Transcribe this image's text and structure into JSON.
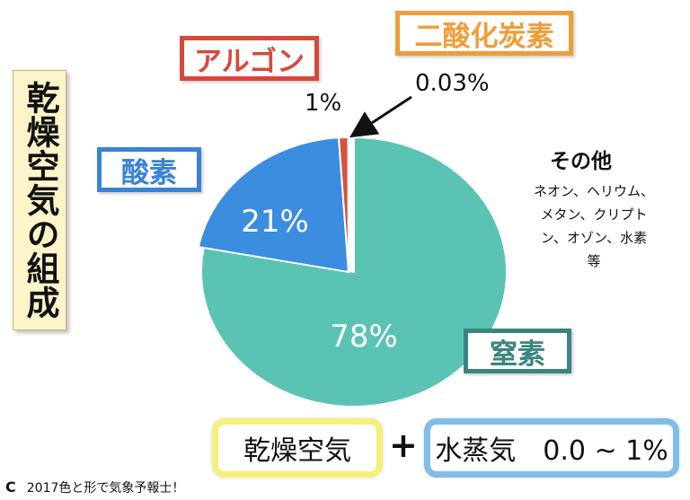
{
  "title": "乾燥空気の組成",
  "labels": {
    "argon": "アルゴン",
    "co2": "二酸化炭素",
    "oxygen": "酸素",
    "nitrogen": "窒素"
  },
  "others": {
    "title": "その他",
    "list": [
      "ネオン、ヘリウム、",
      "メタン、クリプト",
      "ン、オゾン、水素",
      "等"
    ]
  },
  "bottom": {
    "dry_air": "乾燥空気",
    "plus": "+",
    "water_vapor": "水蒸気　0.0 ~ 1%"
  },
  "copyright": {
    "symbol": "C",
    "text": "2017色と形で気象予報士！"
  },
  "colors": {
    "nitrogen": "#5bc3b4",
    "oxygen": "#3b8de0",
    "argon": "#d5533f",
    "co2": "#ef9d3a"
  },
  "chart_data": {
    "type": "pie",
    "title": "",
    "categories": [
      "窒素",
      "酸素",
      "アルゴン",
      "二酸化炭素"
    ],
    "values": [
      78,
      21,
      1,
      0.03
    ],
    "value_labels": [
      "78%",
      "21%",
      "1%",
      "0.03%"
    ]
  }
}
